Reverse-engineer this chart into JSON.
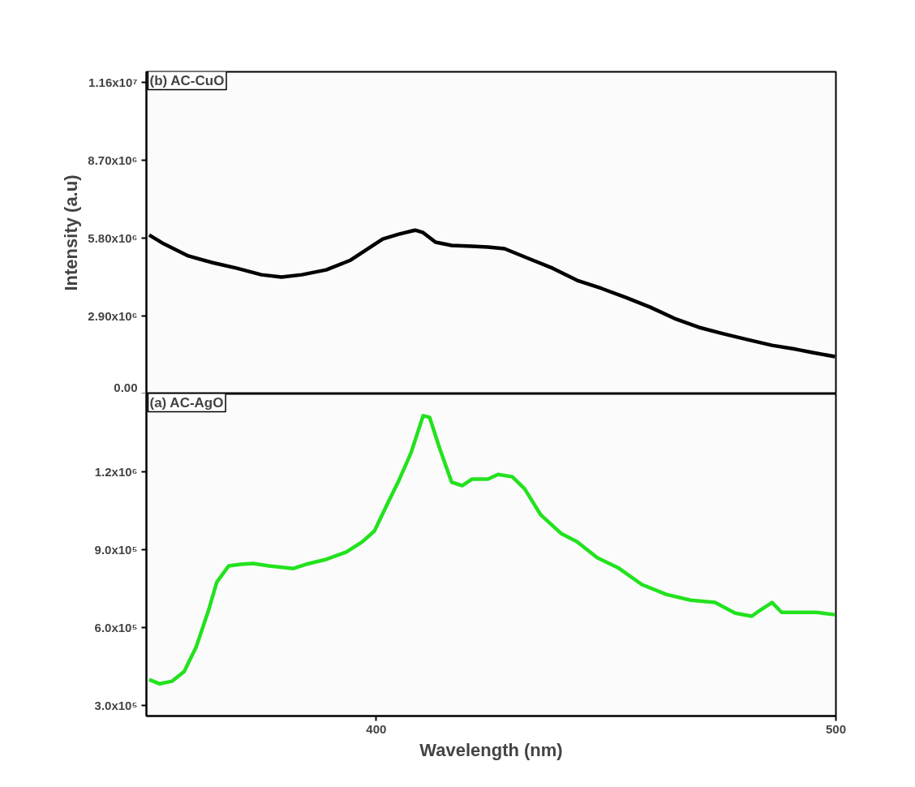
{
  "chart_data": [
    {
      "type": "line",
      "annotations": [
        "(b) AC-CuO"
      ],
      "ylabel": "Intensity (a.u)",
      "xlim": [
        350,
        500
      ],
      "ylim": [
        0,
        12000000
      ],
      "yticks": [
        {
          "value": 0,
          "label": "0.00"
        },
        {
          "value": 2900000,
          "label": "2.90x10⁶"
        },
        {
          "value": 5800000,
          "label": "5.80x10⁶"
        },
        {
          "value": 8700000,
          "label": "8.70x10⁶"
        },
        {
          "value": 11600000,
          "label": "1.16x10⁷"
        }
      ],
      "tick_labels": "y",
      "grid": false,
      "line_style": "solid",
      "marker": "none",
      "x": [
        350.6,
        353.8,
        359.1,
        364.4,
        369.7,
        375,
        379.4,
        383.8,
        389.1,
        394.4,
        397.9,
        401.4,
        404.9,
        408.5,
        410.2,
        412.9,
        416.4,
        420.8,
        424.3,
        427.9,
        433.2,
        438.4,
        443.7,
        449,
        454.3,
        459.6,
        464.9,
        470.2,
        475.5,
        480.8,
        486.1,
        491.4,
        494.9,
        499.8
      ],
      "series": [
        {
          "color": "#000000",
          "values": [
            5920000,
            5590000,
            5140000,
            4890000,
            4680000,
            4440000,
            4350000,
            4440000,
            4620000,
            4980000,
            5380000,
            5770000,
            5950000,
            6100000,
            6010000,
            5650000,
            5530000,
            5500000,
            5470000,
            5410000,
            5040000,
            4680000,
            4230000,
            3930000,
            3590000,
            3230000,
            2810000,
            2480000,
            2240000,
            2020000,
            1810000,
            1660000,
            1540000,
            1390000
          ]
        }
      ]
    },
    {
      "type": "line",
      "annotations": [
        "(a) AC-AgO"
      ],
      "xlabel": "Wavelength (nm)",
      "xlim": [
        350,
        500
      ],
      "xticks": [
        400,
        500
      ],
      "ylim": [
        260000,
        1500000
      ],
      "yticks": [
        {
          "value": 300000,
          "label": "3.0x10⁵"
        },
        {
          "value": 600000,
          "label": "6.0x10⁵"
        },
        {
          "value": 900000,
          "label": "9.0x10⁵"
        },
        {
          "value": 1200000,
          "label": "1.2x10⁶"
        }
      ],
      "grid": false,
      "line_style": "solid",
      "marker": "none",
      "x": [
        350.6,
        352.9,
        355.6,
        358.2,
        360.8,
        363.5,
        365.3,
        367.9,
        370.5,
        373.2,
        376.7,
        382,
        384.7,
        389.1,
        393.5,
        397,
        399.6,
        402.3,
        404.9,
        407.6,
        410.2,
        411.6,
        413.8,
        416.4,
        418.7,
        420.8,
        424.3,
        426.5,
        429.6,
        432.3,
        435.8,
        440.2,
        443.7,
        448.1,
        452.6,
        457.8,
        463.1,
        468.4,
        473.7,
        478.1,
        481.7,
        483.4,
        486.1,
        488.2,
        492.2,
        495.8,
        499.8
      ],
      "series": [
        {
          "color": "#22e21e",
          "values": [
            400000,
            384000,
            394000,
            431000,
            525000,
            666000,
            775000,
            838000,
            844000,
            847000,
            838000,
            828000,
            844000,
            863000,
            891000,
            931000,
            972000,
            1072000,
            1166000,
            1275000,
            1416000,
            1410000,
            1290000,
            1160000,
            1147000,
            1172000,
            1172000,
            1190000,
            1181000,
            1134000,
            1034000,
            963000,
            931000,
            869000,
            831000,
            766000,
            728000,
            706000,
            697000,
            656000,
            644000,
            666000,
            697000,
            659000,
            659000,
            659000,
            650000
          ]
        }
      ]
    }
  ]
}
